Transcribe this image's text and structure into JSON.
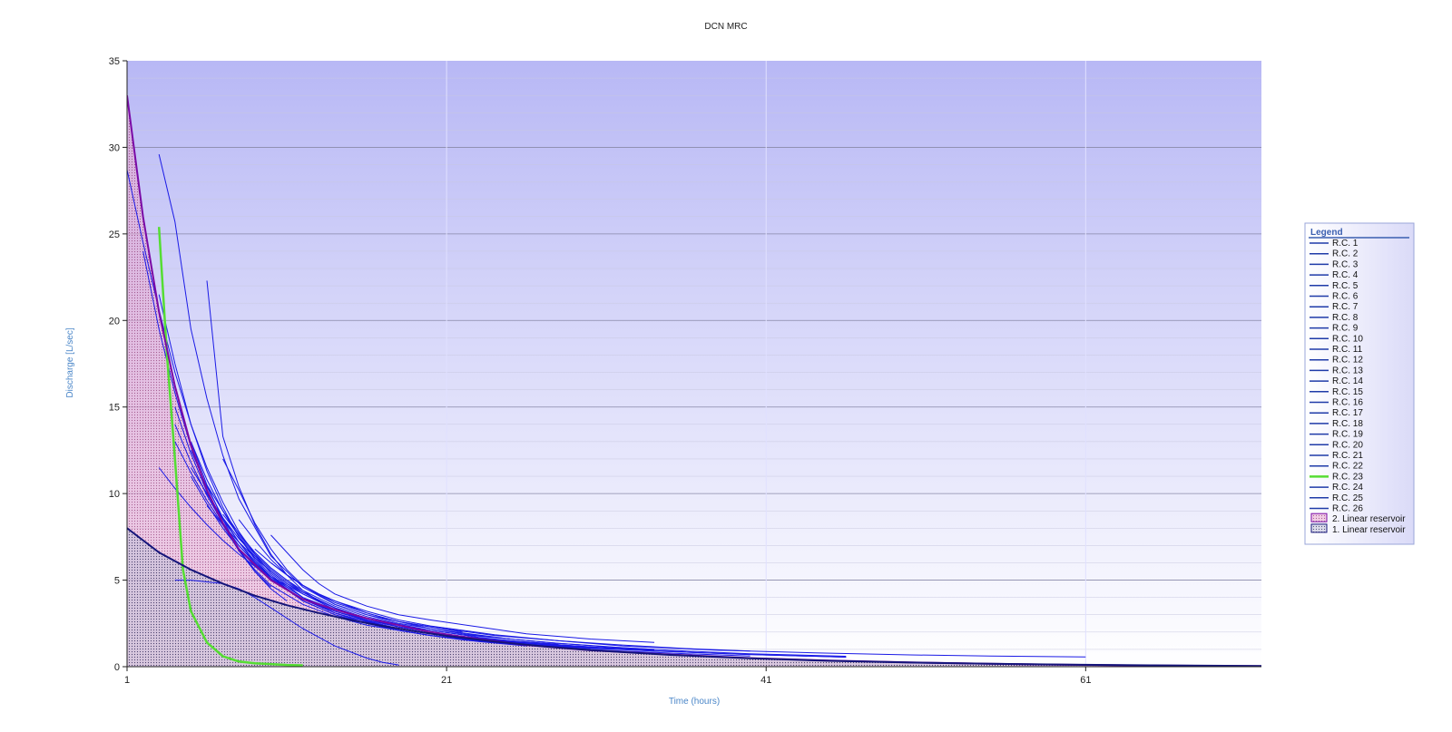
{
  "chart_data": {
    "type": "line",
    "title": "DCN MRC",
    "xlabel": "Time (hours)",
    "ylabel": "Discharge [L/sec]",
    "xlim": [
      1,
      72
    ],
    "ylim": [
      0,
      35
    ],
    "x_ticks": [
      1,
      21,
      41,
      61
    ],
    "y_ticks": [
      0,
      5,
      10,
      15,
      20,
      25,
      30,
      35
    ],
    "grid": true,
    "legend_position": "right",
    "legend_title": "Legend",
    "colors": {
      "recession": "#1a1ae6",
      "recession_legend": "#1e3aa8",
      "highlight": "#55dd33",
      "reservoir2": "#b0206a",
      "reservoir2_line": "#7a0aa6",
      "reservoir1": "#202050",
      "reservoir1_line": "#15157a",
      "plot_top": "#b8b8f5",
      "plot_bottom": "#ffffff"
    },
    "areas": [
      {
        "name": "2. Linear reservoir",
        "x": [
          1,
          2,
          3,
          4,
          5,
          6,
          7,
          8,
          10,
          12,
          14,
          16,
          18,
          20,
          23,
          26,
          30,
          35,
          40,
          45,
          50,
          55,
          60,
          65,
          72
        ],
        "values": [
          33.0,
          26.0,
          20.5,
          16.2,
          12.8,
          10.2,
          8.3,
          6.8,
          5.0,
          3.9,
          3.3,
          2.8,
          2.4,
          2.0,
          1.6,
          1.25,
          0.95,
          0.7,
          0.5,
          0.35,
          0.25,
          0.17,
          0.11,
          0.07,
          0.03
        ]
      },
      {
        "name": "1. Linear reservoir",
        "x": [
          1,
          3,
          5,
          7,
          9,
          11,
          13,
          15,
          17,
          19,
          21,
          24,
          27,
          30,
          35,
          40,
          45,
          50,
          55,
          60,
          65,
          72
        ],
        "values": [
          8.0,
          6.6,
          5.6,
          4.8,
          4.1,
          3.55,
          3.1,
          2.7,
          2.35,
          2.05,
          1.78,
          1.45,
          1.18,
          0.96,
          0.68,
          0.48,
          0.34,
          0.24,
          0.17,
          0.12,
          0.08,
          0.04
        ]
      }
    ],
    "series": [
      {
        "name": "R.C. 1",
        "x": [
          5,
          6,
          7,
          8,
          9,
          10,
          11
        ],
        "values": [
          13.0,
          10.5,
          8.5,
          6.8,
          5.5,
          4.5,
          3.8
        ]
      },
      {
        "name": "R.C. 2",
        "x": [
          2,
          3,
          4,
          5,
          6,
          7,
          8,
          9,
          10
        ],
        "values": [
          24.0,
          19.5,
          15.8,
          12.7,
          10.2,
          8.2,
          6.7,
          5.5,
          4.6
        ]
      },
      {
        "name": "R.C. 3",
        "x": [
          3,
          4,
          5,
          6,
          7,
          8,
          10,
          12,
          14,
          16,
          18,
          20,
          22
        ],
        "values": [
          29.6,
          25.7,
          19.5,
          15.5,
          12.2,
          9.7,
          6.4,
          4.6,
          3.6,
          3.0,
          2.6,
          2.3,
          2.0
        ]
      },
      {
        "name": "R.C. 4",
        "x": [
          6,
          7,
          8,
          9,
          10,
          11,
          12,
          13
        ],
        "values": [
          22.3,
          13.3,
          10.4,
          8.2,
          6.5,
          5.3,
          4.4,
          3.8
        ]
      },
      {
        "name": "R.C. 5",
        "x": [
          10,
          11,
          12,
          13,
          14,
          16,
          18,
          20,
          23,
          26,
          30,
          34
        ],
        "values": [
          7.6,
          6.6,
          5.6,
          4.8,
          4.2,
          3.5,
          3.0,
          2.7,
          2.3,
          1.9,
          1.6,
          1.4
        ]
      },
      {
        "name": "R.C. 6",
        "x": [
          7,
          8,
          9,
          10,
          11,
          12,
          14,
          16,
          18,
          20,
          22,
          25,
          28,
          31,
          34
        ],
        "values": [
          12.0,
          10.2,
          8.3,
          6.8,
          5.6,
          4.7,
          3.6,
          3.0,
          2.5,
          2.2,
          1.9,
          1.6,
          1.35,
          1.15,
          1.0
        ]
      },
      {
        "name": "R.C. 7",
        "x": [
          4,
          5,
          6,
          7,
          8,
          9,
          10,
          12,
          14,
          16,
          18,
          20,
          24,
          28,
          34,
          40,
          46
        ],
        "values": [
          15.0,
          12.3,
          10.1,
          8.2,
          6.7,
          5.6,
          4.7,
          3.6,
          2.9,
          2.4,
          2.1,
          1.8,
          1.4,
          1.15,
          0.9,
          0.7,
          0.55
        ]
      },
      {
        "name": "R.C. 8",
        "x": [
          8,
          9,
          10,
          11,
          12,
          14,
          16,
          18,
          20,
          24,
          28,
          32,
          38,
          44,
          50,
          55,
          61
        ],
        "values": [
          8.5,
          7.3,
          6.2,
          5.3,
          4.7,
          3.7,
          3.1,
          2.6,
          2.3,
          1.8,
          1.5,
          1.2,
          0.95,
          0.8,
          0.68,
          0.62,
          0.56
        ]
      },
      {
        "name": "R.C. 9",
        "x": [
          6,
          7,
          8,
          9,
          10,
          11,
          12,
          14,
          16,
          18,
          20,
          23,
          26,
          30
        ],
        "values": [
          10.0,
          8.5,
          7.2,
          6.1,
          5.2,
          4.5,
          3.9,
          3.1,
          2.6,
          2.2,
          1.9,
          1.6,
          1.35,
          1.15
        ]
      },
      {
        "name": "R.C. 10",
        "x": [
          5,
          6,
          7,
          8,
          9,
          10,
          12,
          14,
          16,
          18,
          20,
          22,
          25,
          28
        ],
        "values": [
          11.0,
          9.4,
          8.0,
          6.8,
          5.8,
          5.0,
          3.9,
          3.2,
          2.7,
          2.3,
          2.0,
          1.75,
          1.5,
          1.3
        ]
      },
      {
        "name": "R.C. 11",
        "x": [
          4,
          5,
          6,
          7,
          8,
          9,
          10,
          12,
          14,
          16,
          18,
          20,
          22,
          25
        ],
        "values": [
          13.0,
          11.2,
          9.6,
          8.2,
          7.0,
          6.0,
          5.2,
          4.0,
          3.3,
          2.8,
          2.4,
          2.1,
          1.85,
          1.6
        ]
      },
      {
        "name": "R.C. 12",
        "x": [
          9,
          10,
          11,
          12,
          13,
          14,
          16,
          18,
          20,
          24,
          28,
          32,
          36,
          40
        ],
        "values": [
          6.8,
          6.0,
          5.3,
          4.7,
          4.2,
          3.8,
          3.2,
          2.7,
          2.35,
          1.85,
          1.5,
          1.25,
          1.05,
          0.9
        ]
      },
      {
        "name": "R.C. 13",
        "x": [
          6,
          7,
          8,
          9,
          10,
          11,
          12,
          14,
          16,
          18,
          20,
          22,
          24,
          27,
          30,
          34
        ],
        "values": [
          9.3,
          8.2,
          7.2,
          6.3,
          5.5,
          4.8,
          4.3,
          3.4,
          2.8,
          2.3,
          2.0,
          1.75,
          1.55,
          1.3,
          1.1,
          0.95
        ]
      },
      {
        "name": "R.C. 14",
        "x": [
          5,
          6,
          7,
          8,
          9,
          10,
          11,
          12,
          14,
          16,
          18,
          20
        ],
        "values": [
          11.5,
          10.0,
          8.6,
          7.4,
          6.4,
          5.5,
          4.8,
          4.2,
          3.3,
          2.7,
          2.3,
          2.0
        ]
      },
      {
        "name": "R.C. 15",
        "x": [
          5,
          6,
          7,
          8,
          9,
          10,
          12,
          14,
          16,
          18,
          20,
          24,
          28
        ],
        "values": [
          12.5,
          10.4,
          8.6,
          7.2,
          6.0,
          5.1,
          3.8,
          3.0,
          2.5,
          2.1,
          1.8,
          1.4,
          1.1
        ]
      },
      {
        "name": "R.C. 16",
        "x": [
          8,
          9,
          10,
          11,
          12,
          14,
          16,
          18,
          20,
          24,
          28,
          32,
          36
        ],
        "values": [
          7.5,
          6.5,
          5.6,
          4.9,
          4.3,
          3.4,
          2.8,
          2.3,
          2.0,
          1.5,
          1.2,
          1.0,
          0.85
        ]
      },
      {
        "name": "R.C. 17",
        "x": [
          3,
          4,
          5,
          6,
          7,
          8,
          9,
          10,
          12,
          14,
          16,
          18,
          20,
          22,
          25,
          28,
          32,
          36,
          40
        ],
        "values": [
          21.5,
          17.5,
          14.0,
          11.3,
          9.2,
          7.5,
          6.2,
          5.2,
          3.8,
          3.0,
          2.5,
          2.1,
          1.8,
          1.55,
          1.3,
          1.1,
          0.9,
          0.75,
          0.62
        ]
      },
      {
        "name": "R.C. 18",
        "x": [
          10,
          11,
          12,
          13,
          14,
          16,
          18,
          20,
          22,
          25,
          28,
          32,
          36,
          40,
          46
        ],
        "values": [
          6.0,
          5.3,
          4.7,
          4.2,
          3.8,
          3.1,
          2.6,
          2.2,
          1.95,
          1.6,
          1.35,
          1.1,
          0.9,
          0.75,
          0.6
        ]
      },
      {
        "name": "R.C. 19",
        "x": [
          7,
          8,
          9,
          10,
          11,
          12,
          14,
          16,
          18,
          20,
          23,
          26,
          30,
          34
        ],
        "values": [
          8.8,
          7.6,
          6.6,
          5.7,
          5.0,
          4.4,
          3.5,
          2.9,
          2.45,
          2.1,
          1.7,
          1.4,
          1.15,
          0.95
        ]
      },
      {
        "name": "R.C. 20",
        "x": [
          6,
          7,
          8,
          9,
          10,
          12,
          14,
          16,
          18,
          20,
          22,
          26,
          30,
          34,
          40,
          46
        ],
        "values": [
          10.5,
          9.0,
          7.7,
          6.6,
          5.7,
          4.3,
          3.4,
          2.8,
          2.3,
          2.0,
          1.75,
          1.35,
          1.1,
          0.9,
          0.7,
          0.55
        ]
      },
      {
        "name": "R.C. 21",
        "x": [
          4,
          5,
          6,
          7,
          8,
          9,
          10,
          12,
          14,
          16,
          18,
          20,
          22,
          24
        ],
        "values": [
          14.0,
          11.8,
          9.9,
          8.3,
          7.0,
          6.0,
          5.1,
          3.9,
          3.1,
          2.6,
          2.2,
          1.9,
          1.65,
          1.45
        ]
      },
      {
        "name": "R.C. 22",
        "x": [
          3,
          4,
          5,
          6,
          7,
          8,
          9,
          10,
          12,
          14,
          16,
          18,
          20
        ],
        "values": [
          11.5,
          10.3,
          9.2,
          8.2,
          7.3,
          6.5,
          5.8,
          5.2,
          4.2,
          3.4,
          2.8,
          2.4,
          2.0
        ]
      },
      {
        "name": "R.C. 23",
        "x": [
          3,
          3.5,
          4,
          4.5,
          5,
          6,
          7,
          8,
          9,
          10,
          11,
          12
        ],
        "values": [
          25.4,
          18.0,
          12.0,
          5.6,
          3.2,
          1.4,
          0.6,
          0.3,
          0.2,
          0.15,
          0.1,
          0.08
        ]
      },
      {
        "name": "R.C. 24",
        "x": [
          4,
          5,
          6,
          7,
          8,
          9,
          10,
          12,
          14,
          16,
          17,
          18
        ],
        "values": [
          5.0,
          5.0,
          4.9,
          4.8,
          4.5,
          4.0,
          3.4,
          2.2,
          1.2,
          0.5,
          0.25,
          0.1
        ]
      },
      {
        "name": "R.C. 25",
        "x": [
          5,
          6,
          7,
          8,
          9,
          10,
          11,
          12,
          14,
          16,
          18,
          20,
          23,
          26
        ],
        "values": [
          13.0,
          10.8,
          9.0,
          7.5,
          6.3,
          5.3,
          4.6,
          4.0,
          3.1,
          2.5,
          2.1,
          1.8,
          1.45,
          1.2
        ]
      },
      {
        "name": "R.C. 26",
        "x": [
          1,
          2,
          3,
          4,
          5,
          6,
          7,
          8,
          9,
          10,
          12,
          14,
          16,
          18,
          20,
          23,
          26,
          30
        ],
        "values": [
          28.7,
          24.5,
          20.6,
          17.0,
          14.0,
          11.5,
          9.5,
          7.8,
          6.5,
          5.4,
          4.0,
          3.2,
          2.65,
          2.2,
          1.9,
          1.55,
          1.3,
          1.05
        ]
      }
    ]
  }
}
